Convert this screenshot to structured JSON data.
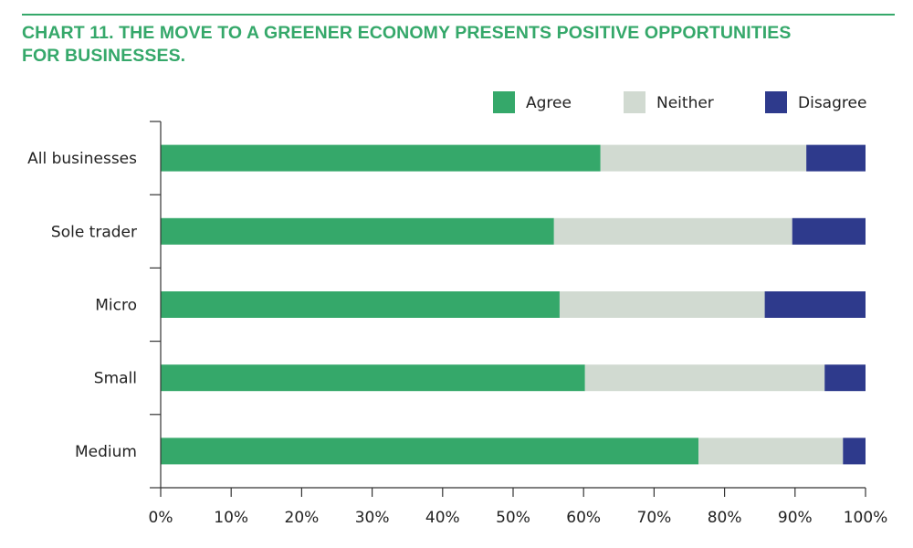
{
  "chart_data": {
    "type": "bar",
    "orientation": "horizontal",
    "stacked": true,
    "title": "CHART 11. THE MOVE TO A GREENER ECONOMY PRESENTS POSITIVE OPPORTUNITIES FOR BUSINESSES.",
    "title_lines": [
      "CHART 11. THE MOVE TO A GREENER ECONOMY PRESENTS POSITIVE OPPORTUNITIES",
      "FOR BUSINESSES."
    ],
    "xlabel": "",
    "ylabel": "",
    "categories": [
      "All businesses",
      "Sole trader",
      "Micro",
      "Small",
      "Medium"
    ],
    "series": [
      {
        "name": "Agree",
        "color": "#35a86a",
        "values": [
          62.4,
          55.8,
          56.6,
          60.2,
          76.3
        ]
      },
      {
        "name": "Neither",
        "color": "#d1dad1",
        "values": [
          29.2,
          33.8,
          29.1,
          34.0,
          20.5
        ]
      },
      {
        "name": "Disagree",
        "color": "#2e3a8c",
        "values": [
          8.4,
          10.4,
          14.3,
          5.8,
          3.2
        ]
      }
    ],
    "xlim": [
      0,
      100
    ],
    "xticks": [
      0,
      10,
      20,
      30,
      40,
      50,
      60,
      70,
      80,
      90,
      100
    ],
    "tick_suffix": "%",
    "grid": false,
    "legend_position": "top-right"
  }
}
